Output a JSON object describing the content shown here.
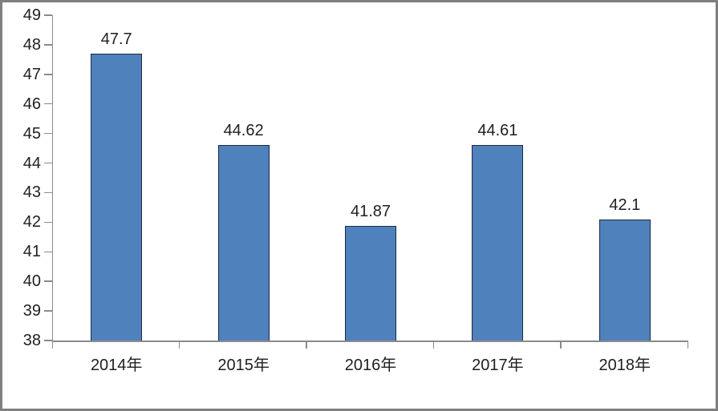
{
  "chart_data": {
    "type": "bar",
    "title": "",
    "xlabel": "",
    "ylabel": "",
    "categories": [
      "2014年",
      "2015年",
      "2016年",
      "2017年",
      "2018年"
    ],
    "values": [
      47.7,
      44.62,
      41.87,
      44.61,
      42.1
    ],
    "data_labels": [
      "47.7",
      "44.62",
      "41.87",
      "44.61",
      "42.1"
    ],
    "ylim": [
      38,
      49
    ],
    "ytick_step": 1,
    "ytick_labels": [
      "38",
      "39",
      "40",
      "41",
      "42",
      "43",
      "44",
      "45",
      "46",
      "47",
      "48",
      "49"
    ],
    "grid": false,
    "legend": false,
    "colors": {
      "bar_fill": "#4f81bd",
      "bar_border": "#1b2a42",
      "axis": "#8a8a8a",
      "text": "#1f1f1f",
      "frame_border": "#7f7f7f",
      "background": "#ffffff"
    }
  }
}
